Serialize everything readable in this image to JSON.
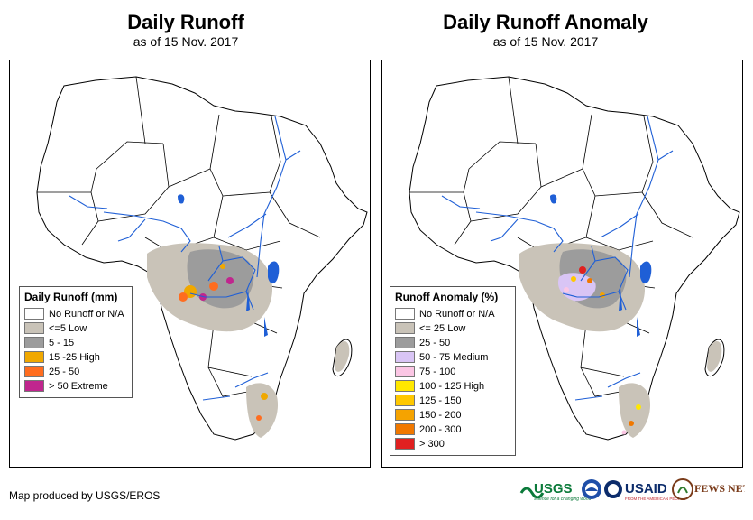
{
  "left": {
    "title": "Daily Runoff",
    "subtitle": "as of 15 Nov. 2017",
    "legend_title": "Daily Runoff (mm)",
    "legend": [
      {
        "label": "No Runoff or N/A",
        "color": "#ffffff"
      },
      {
        "label": "<=5 Low",
        "color": "#c9c3b8"
      },
      {
        "label": "5 - 15",
        "color": "#9c9c9c"
      },
      {
        "label": "15 -25 High",
        "color": "#f0a800"
      },
      {
        "label": "25 - 50",
        "color": "#ff6d1f"
      },
      {
        "label": "> 50 Extreme",
        "color": "#c0268e"
      }
    ]
  },
  "right": {
    "title": "Daily Runoff Anomaly",
    "subtitle": "as of 15 Nov. 2017",
    "legend_title": "Runoff Anomaly (%)",
    "legend": [
      {
        "label": "No Runoff or N/A",
        "color": "#ffffff"
      },
      {
        "label": "<= 25 Low",
        "color": "#c9c3b8"
      },
      {
        "label": "25 - 50",
        "color": "#9c9c9c"
      },
      {
        "label": "50 - 75 Medium",
        "color": "#d9c5f5"
      },
      {
        "label": "75 - 100",
        "color": "#fbc6e4"
      },
      {
        "label": "100 - 125 High",
        "color": "#ffe800"
      },
      {
        "label": "125 - 150",
        "color": "#ffc800"
      },
      {
        "label": "150 - 200",
        "color": "#f5a300"
      },
      {
        "label": "200 - 300",
        "color": "#f07800"
      },
      {
        "label": "> 300",
        "color": "#e02020"
      }
    ]
  },
  "credit": "Map produced by USGS/EROS",
  "logos": {
    "usgs": "USGS",
    "usgs_tagline": "science for a changing world",
    "noaa": "NOAA",
    "usaid": "USAID",
    "usaid_tagline": "FROM THE AMERICAN PEOPLE",
    "fewsnet": "FEWS NET"
  },
  "colors": {
    "river": "#1f5fd6",
    "lake": "#1f5fd6",
    "border": "#000000"
  }
}
